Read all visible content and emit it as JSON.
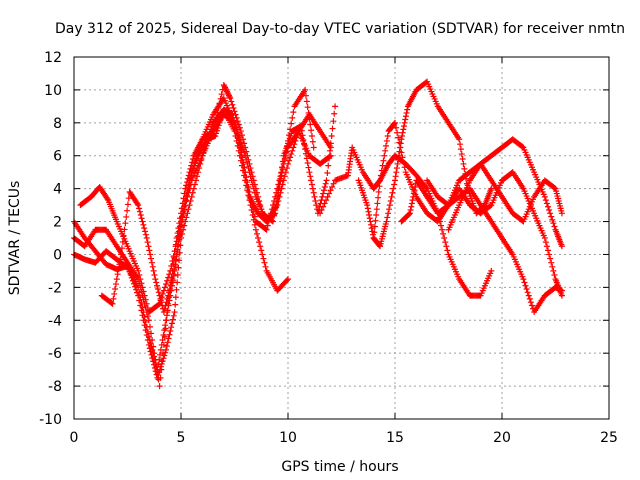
{
  "chart_data": {
    "type": "scatter",
    "title": "Day 312 of 2025, Sidereal Day-to-day VTEC variation (SDTVAR) for receiver nmtn",
    "xlabel": "GPS time / hours",
    "ylabel": "SDTVAR / TECUs",
    "xlim": [
      0,
      25
    ],
    "ylim": [
      -10,
      12
    ],
    "x_ticks": [
      0,
      5,
      10,
      15,
      20,
      25
    ],
    "y_ticks": [
      -10,
      -8,
      -6,
      -4,
      -2,
      0,
      2,
      4,
      6,
      8,
      10,
      12
    ],
    "grid": true,
    "marker": "+",
    "color": "#ff0000",
    "series": [
      {
        "name": "s1",
        "x": [
          0,
          0.5,
          1.0,
          1.5,
          2.0,
          2.5,
          3.0,
          3.5,
          3.9,
          4.3,
          4.7,
          5.0,
          5.5,
          6.0,
          6.5,
          7.0,
          7.5,
          8.0,
          8.5,
          9.0,
          9.5,
          10.0
        ],
        "y": [
          2.0,
          1.0,
          0.2,
          -0.6,
          -0.9,
          -0.7,
          -2.5,
          -5.5,
          -7.5,
          -5.8,
          -3.5,
          1.0,
          3.5,
          6.0,
          8.0,
          8.8,
          7.5,
          4.5,
          1.5,
          -1.0,
          -2.2,
          -1.5
        ]
      },
      {
        "name": "s2",
        "x": [
          0,
          0.5,
          1.0,
          1.5,
          2.0,
          2.5,
          3.0,
          3.5,
          3.9,
          4.3,
          4.7,
          5.0,
          5.5,
          6.0,
          6.5,
          7.0,
          7.5,
          8.0,
          8.5,
          9.0,
          9.5,
          10.0,
          10.5,
          11.0,
          11.5,
          12.0
        ],
        "y": [
          0.0,
          -0.3,
          -0.5,
          0.2,
          -0.3,
          -0.8,
          -2.0,
          -5.0,
          -7.0,
          -4.0,
          -1.0,
          2.0,
          5.0,
          7.0,
          8.5,
          9.5,
          8.0,
          5.0,
          2.0,
          1.5,
          4.0,
          6.5,
          7.5,
          6.0,
          5.5,
          6.0
        ]
      },
      {
        "name": "s3",
        "x": [
          0,
          0.5,
          1.0,
          1.5,
          2.0,
          2.5,
          3.0,
          3.5,
          4.0,
          4.4,
          4.8,
          5.2,
          5.6,
          6.0,
          6.5,
          7.0,
          7.3,
          7.8,
          8.3,
          8.8,
          9.3,
          9.8,
          10.3,
          10.8,
          11.2
        ],
        "y": [
          1.0,
          0.5,
          1.5,
          1.5,
          0.5,
          -0.5,
          -1.5,
          -4.0,
          -8.0,
          -3.0,
          1.0,
          4.0,
          6.0,
          7.0,
          7.5,
          10.3,
          9.5,
          7.5,
          5.0,
          2.5,
          2.0,
          5.5,
          9.0,
          10.0,
          6.5
        ]
      },
      {
        "name": "s4",
        "x": [
          0.3,
          0.8,
          1.2,
          1.6,
          2.0,
          2.5,
          3.0,
          3.5,
          4.0,
          4.5,
          5.0,
          5.5,
          6.0,
          6.5,
          7.0,
          7.5,
          8.0,
          8.5,
          9.0,
          9.5,
          10.0,
          10.5,
          11.0,
          11.5,
          12.0
        ],
        "y": [
          3.0,
          3.5,
          4.1,
          3.3,
          2.0,
          0.5,
          -1.0,
          -3.5,
          -3.0,
          -1.0,
          2.0,
          4.5,
          6.0,
          7.5,
          8.5,
          8.0,
          6.0,
          3.5,
          2.0,
          3.0,
          5.5,
          7.5,
          8.5,
          7.5,
          6.5
        ]
      },
      {
        "name": "s5",
        "x": [
          1.3,
          1.8,
          2.2,
          2.6,
          3.0,
          3.4,
          3.8,
          4.2,
          4.6,
          5.0,
          5.4,
          5.8,
          6.2,
          6.6,
          7.0,
          7.4,
          7.8,
          8.2,
          8.6,
          9.0,
          9.4,
          9.8,
          10.2,
          10.6,
          11.0,
          11.4,
          11.8,
          12.2
        ],
        "y": [
          -2.5,
          -3.0,
          0.0,
          3.8,
          3.0,
          1.0,
          -1.5,
          -3.5,
          -1.5,
          1.5,
          4.5,
          6.0,
          7.0,
          7.2,
          8.8,
          8.5,
          6.5,
          3.5,
          2.5,
          2.0,
          2.5,
          6.0,
          7.5,
          7.8,
          5.0,
          2.5,
          4.5,
          9.0
        ]
      },
      {
        "name": "s6",
        "x": [
          11.5,
          12.2,
          12.8,
          13.0,
          13.5,
          14.0,
          14.3,
          14.7,
          15.0,
          15.5,
          16.0,
          16.5,
          17.0,
          17.5,
          18.0,
          18.5,
          19.0,
          19.5
        ],
        "y": [
          2.5,
          4.5,
          4.8,
          6.5,
          5.0,
          4.0,
          4.5,
          5.5,
          6.0,
          5.5,
          4.8,
          4.0,
          2.5,
          0.0,
          -1.5,
          -2.5,
          -2.5,
          -1.0
        ]
      },
      {
        "name": "s7",
        "x": [
          13.3,
          13.7,
          14.0,
          14.3,
          14.6,
          15.0,
          15.3,
          15.6,
          16.0,
          16.5,
          17.0,
          17.5,
          18.0,
          18.4,
          18.8,
          19.2,
          19.5
        ],
        "y": [
          4.5,
          3.0,
          1.0,
          0.5,
          2.0,
          4.5,
          7.0,
          9.0,
          10.0,
          10.5,
          9.0,
          8.0,
          7.0,
          4.0,
          2.5,
          3.0,
          4.0
        ]
      },
      {
        "name": "s8",
        "x": [
          14.0,
          14.3,
          14.7,
          15.0,
          15.5,
          16.0,
          16.5,
          17.0,
          17.5,
          18.0,
          18.5,
          19.0,
          19.5,
          20.0,
          20.5,
          21.0,
          21.5,
          22.0,
          22.5,
          22.8
        ],
        "y": [
          1.0,
          4.5,
          7.5,
          8.0,
          5.0,
          3.5,
          2.5,
          2.0,
          3.0,
          4.5,
          5.0,
          5.5,
          6.0,
          6.5,
          7.0,
          6.5,
          5.0,
          3.5,
          1.5,
          0.5
        ]
      },
      {
        "name": "s9",
        "x": [
          15.3,
          15.7,
          16.0,
          16.5,
          17.0,
          17.5,
          18.0,
          18.5,
          19.0,
          19.5,
          20.0,
          20.5,
          21.0,
          21.5,
          22.0,
          22.5,
          22.8
        ],
        "y": [
          2.0,
          2.5,
          4.5,
          3.5,
          2.5,
          3.0,
          4.0,
          3.0,
          2.5,
          3.0,
          4.5,
          5.0,
          4.0,
          2.5,
          1.0,
          -1.5,
          -2.5
        ]
      },
      {
        "name": "s10",
        "x": [
          16.5,
          17.0,
          17.5,
          18.0,
          18.5,
          19.0,
          19.5,
          20.0,
          20.5,
          21.0,
          21.5,
          22.0,
          22.5,
          22.8
        ],
        "y": [
          4.5,
          3.5,
          3.0,
          3.5,
          4.0,
          3.0,
          2.0,
          1.0,
          0.0,
          -1.5,
          -3.5,
          -2.5,
          -2.0,
          -2.2
        ]
      },
      {
        "name": "s11",
        "x": [
          17.5,
          18.0,
          18.5,
          19.0,
          19.5,
          20.0,
          20.5,
          21.0,
          21.5,
          22.0,
          22.5,
          22.8
        ],
        "y": [
          1.5,
          3.0,
          4.5,
          5.5,
          4.5,
          3.5,
          2.5,
          2.0,
          3.5,
          4.5,
          4.0,
          2.5
        ]
      }
    ]
  }
}
